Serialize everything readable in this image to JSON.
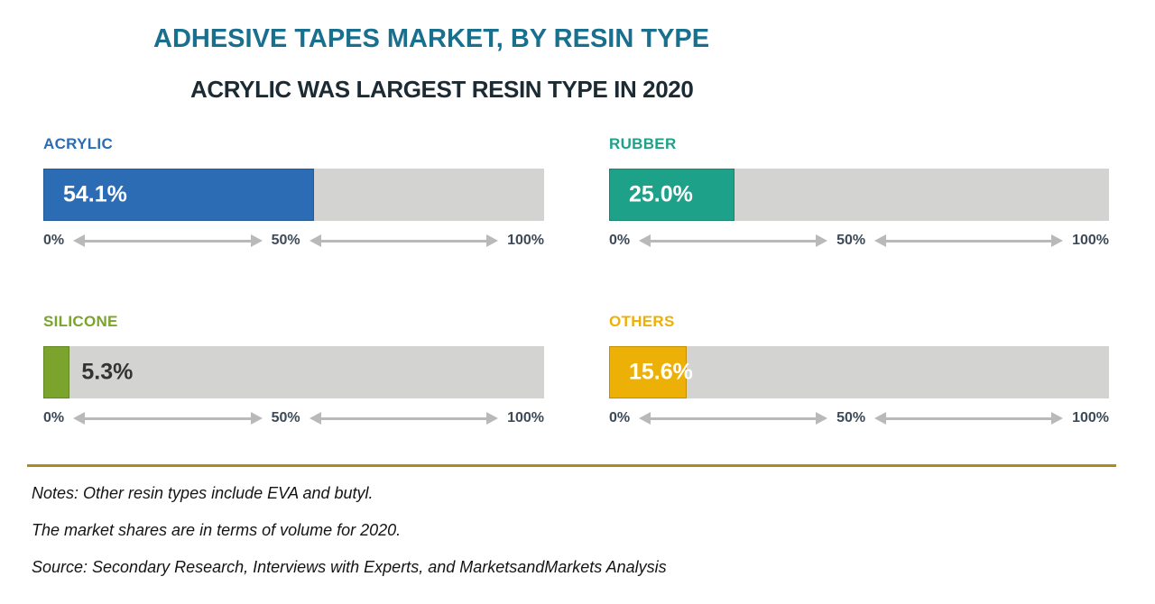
{
  "title": "ADHESIVE TAPES MARKET, BY RESIN TYPE",
  "subtitle": "ACRYLIC WAS LARGEST RESIN TYPE IN 2020",
  "colors": {
    "title": "#186f8e",
    "subtitle": "#1c2b33",
    "track": "#d3d3d1",
    "axis_text": "#3d4a58",
    "arrow": "#b9b9b9",
    "divider": "#ac8b1d"
  },
  "chart_data": {
    "type": "bar",
    "orientation": "horizontal",
    "title": "ADHESIVE TAPES MARKET, BY RESIN TYPE",
    "subtitle": "ACRYLIC WAS LARGEST RESIN TYPE IN 2020",
    "unit": "% market share by volume, 2020",
    "xlim": [
      0,
      100
    ],
    "axis_ticks": [
      "0%",
      "50%",
      "100%"
    ],
    "categories": [
      "ACRYLIC",
      "RUBBER",
      "SILICONE",
      "OTHERS"
    ],
    "values": [
      54.1,
      25.0,
      5.3,
      15.6
    ],
    "bars": [
      {
        "category": "ACRYLIC",
        "value": 54.1,
        "value_label": "54.1%",
        "color": "#2b6cb4",
        "value_color": "#ffffff",
        "value_inside": true
      },
      {
        "category": "RUBBER",
        "value": 25.0,
        "value_label": "25.0%",
        "color": "#1da289",
        "value_color": "#ffffff",
        "value_inside": true
      },
      {
        "category": "SILICONE",
        "value": 5.3,
        "value_label": "5.3%",
        "color": "#7aa42c",
        "value_color": "#333333",
        "value_inside": false
      },
      {
        "category": "OTHERS",
        "value": 15.6,
        "value_label": "15.6%",
        "color": "#ecb006",
        "value_color": "#ffffff",
        "value_inside": true
      }
    ]
  },
  "notes": {
    "line1": "Notes: Other resin types include EVA and butyl.",
    "line2": "The market shares are in terms of volume for 2020.",
    "line3": "Source: Secondary Research, Interviews with Experts, and MarketsandMarkets Analysis"
  }
}
